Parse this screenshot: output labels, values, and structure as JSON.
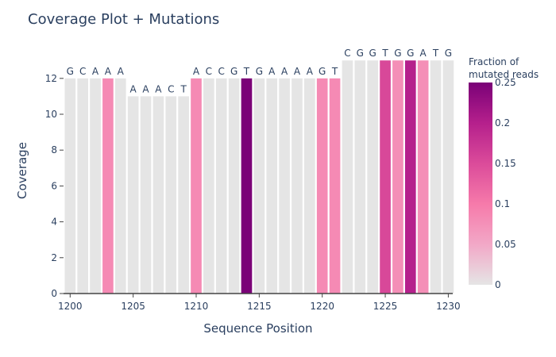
{
  "chart_data": {
    "type": "bar",
    "title": "Coverage Plot + Mutations",
    "xlabel": "Sequence Position",
    "ylabel": "Coverage",
    "xlim": [
      1199.5,
      1230.5
    ],
    "ylim": [
      0,
      13
    ],
    "x_ticks": [
      1200,
      1205,
      1210,
      1215,
      1220,
      1225,
      1230
    ],
    "y_ticks": [
      0,
      2,
      4,
      6,
      8,
      10,
      12
    ],
    "x_tick_labels": [
      "1200",
      "1205",
      "1210",
      "1215",
      "1220",
      "1225",
      "1230"
    ],
    "y_tick_labels": [
      "0",
      "2",
      "4",
      "6",
      "8",
      "10",
      "12"
    ],
    "positions": [
      1200,
      1201,
      1202,
      1203,
      1204,
      1205,
      1206,
      1207,
      1208,
      1209,
      1210,
      1211,
      1212,
      1213,
      1214,
      1215,
      1216,
      1217,
      1218,
      1219,
      1220,
      1221,
      1222,
      1223,
      1224,
      1225,
      1226,
      1227,
      1228,
      1229,
      1230
    ],
    "coverage": [
      12,
      12,
      12,
      12,
      12,
      11,
      11,
      11,
      11,
      11,
      12,
      12,
      12,
      12,
      12,
      12,
      12,
      12,
      12,
      12,
      12,
      12,
      13,
      13,
      13,
      13,
      13,
      13,
      13,
      13,
      13
    ],
    "bases": [
      "G",
      "C",
      "A",
      "A",
      "A",
      "A",
      "A",
      "A",
      "C",
      "T",
      "A",
      "C",
      "C",
      "G",
      "T",
      "G",
      "A",
      "A",
      "A",
      "A",
      "G",
      "T",
      "C",
      "G",
      "G",
      "T",
      "G",
      "G",
      "A",
      "T",
      "G"
    ],
    "mutation_fraction": [
      0,
      0,
      0,
      0.083,
      0,
      0,
      0,
      0,
      0,
      0,
      0.083,
      0,
      0,
      0,
      0.25,
      0,
      0,
      0,
      0,
      0,
      0.083,
      0.083,
      0,
      0,
      0,
      0.154,
      0.077,
      0.2,
      0.077,
      0,
      0
    ],
    "colorbar": {
      "title_lines": [
        "Fraction of",
        "mutated reads"
      ],
      "min": 0,
      "max": 0.25,
      "ticks": [
        0,
        0.05,
        0.1,
        0.15,
        0.2,
        0.25
      ],
      "tick_labels": [
        "0",
        "0.05",
        "0.1",
        "0.15",
        "0.2",
        "0.25"
      ],
      "color_stops": [
        "#e5e5e5",
        "#f2a8c7",
        "#f67aaa",
        "#db4b9a",
        "#b5208c",
        "#7a0177"
      ]
    },
    "grid": false,
    "legend": "colorbar-right"
  }
}
